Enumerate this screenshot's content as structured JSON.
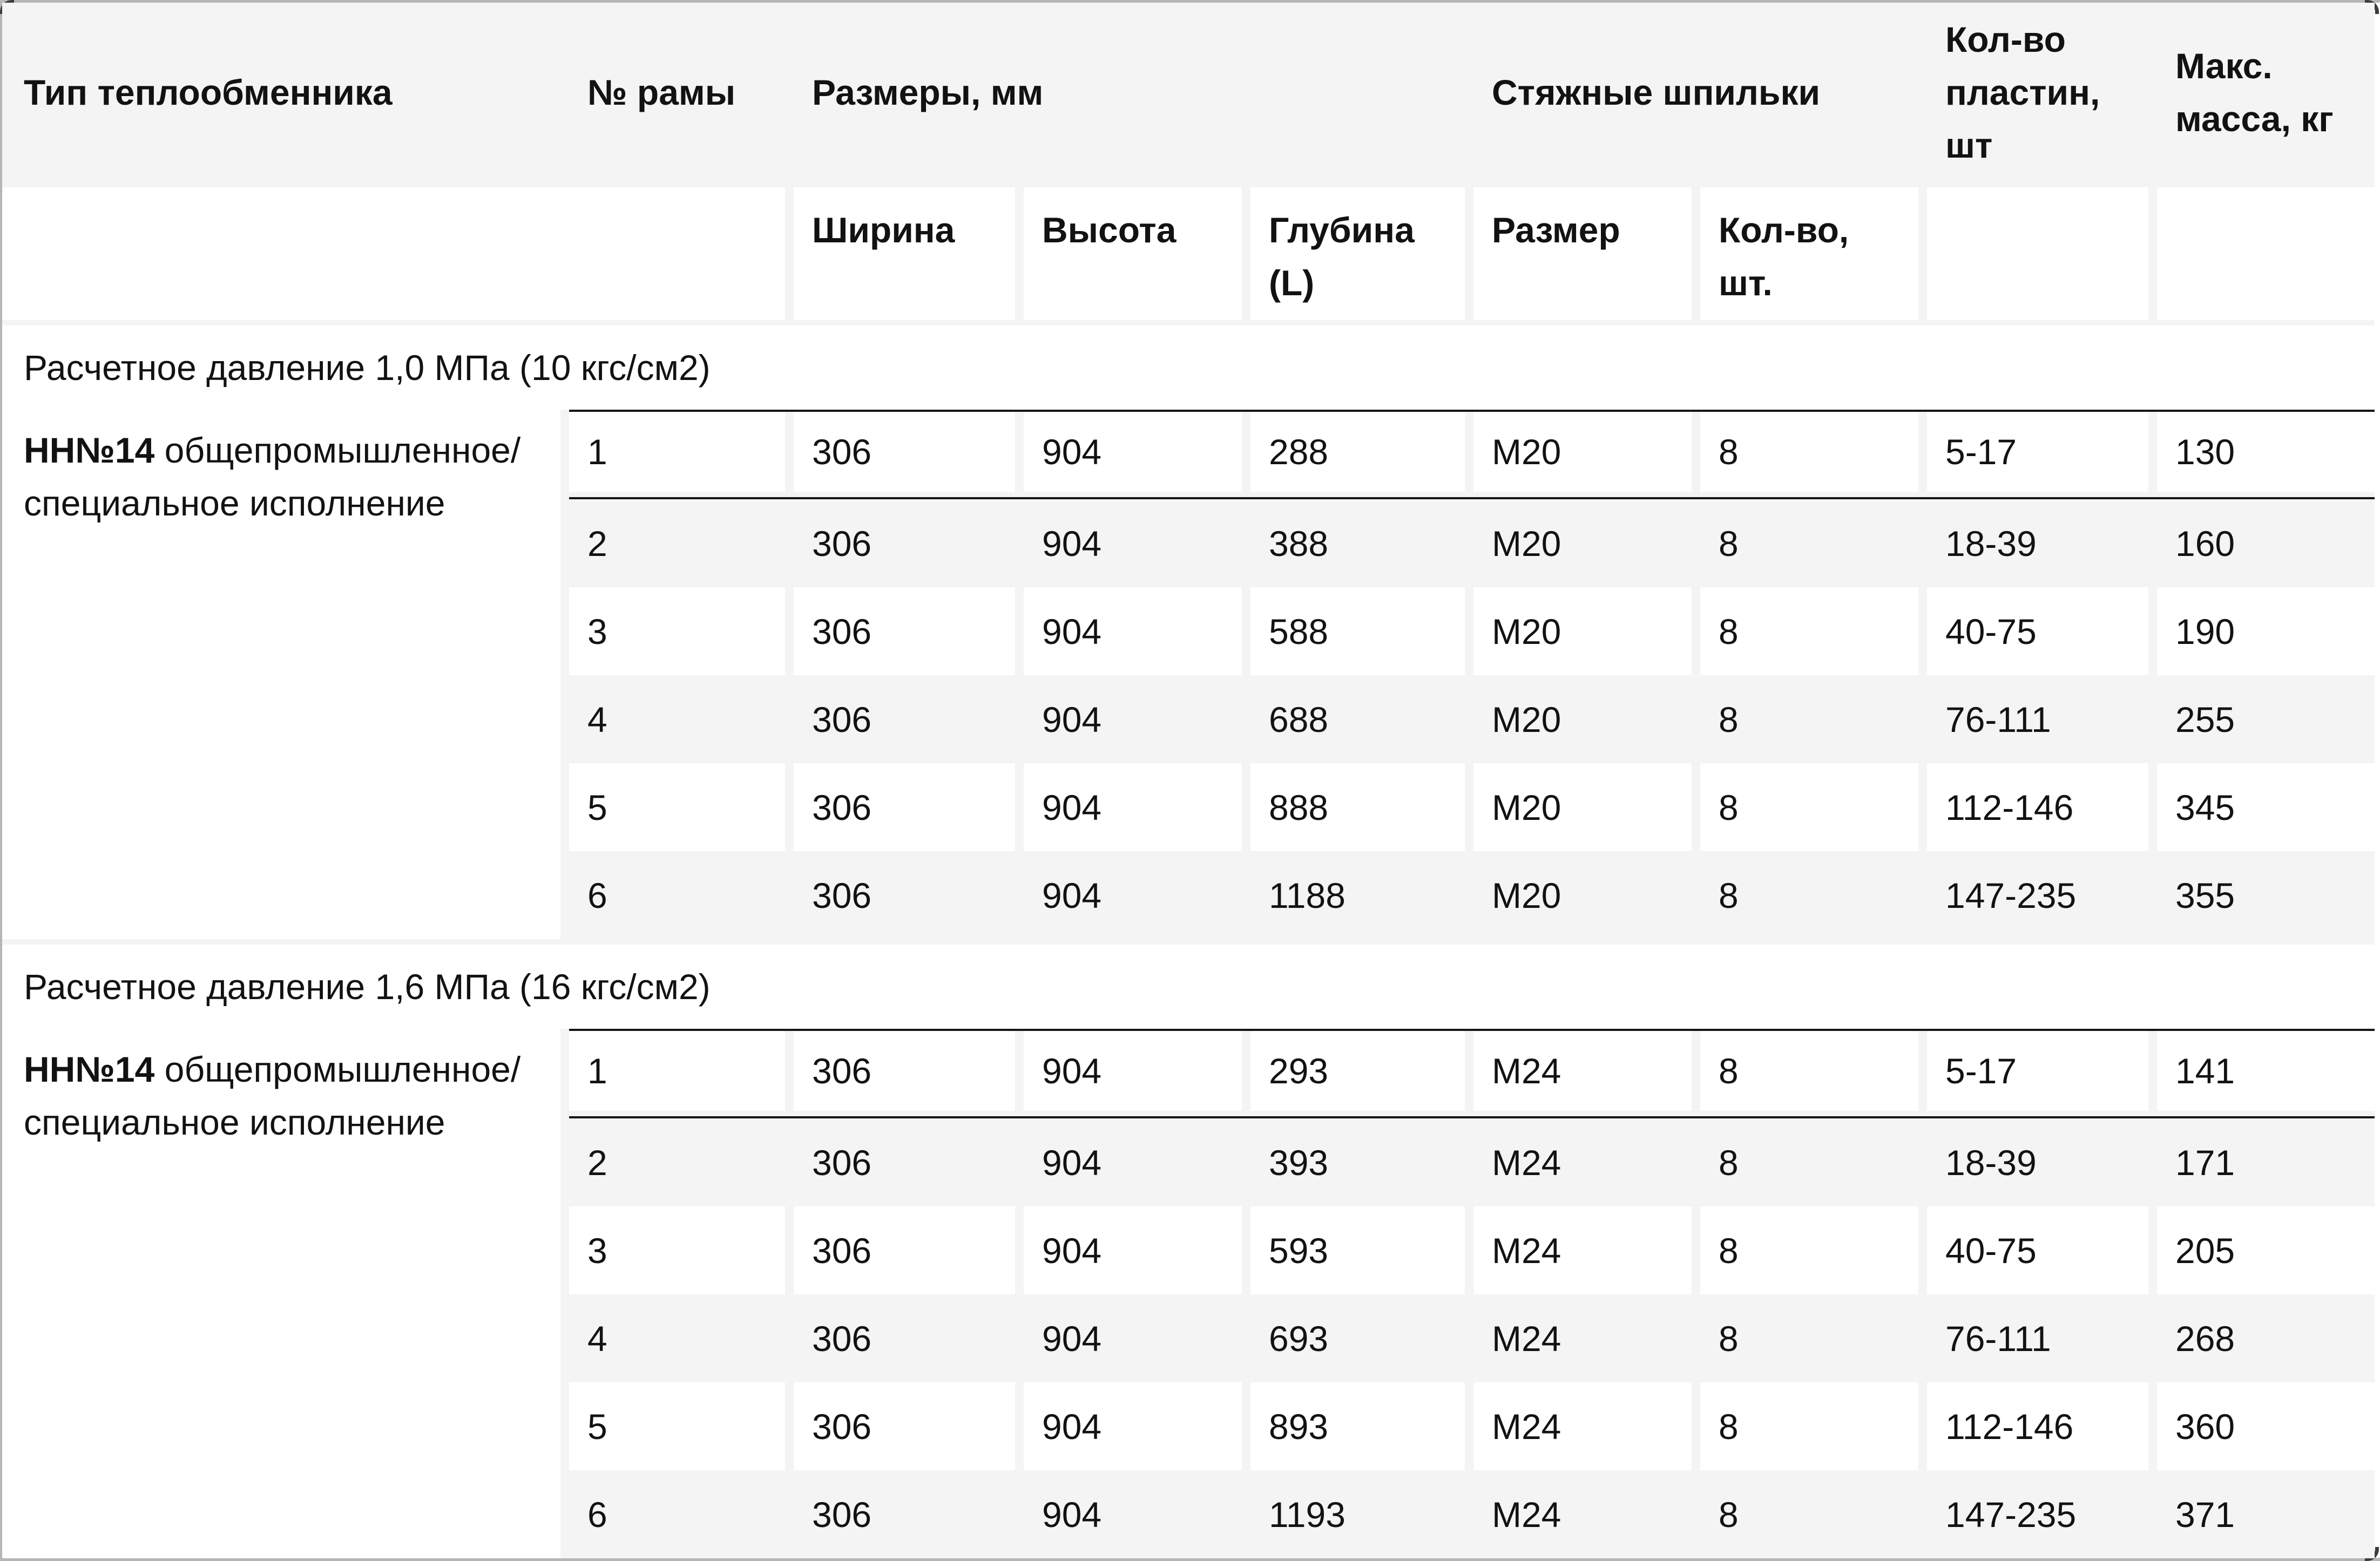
{
  "table": {
    "header": {
      "col_type": "Тип теплообменника",
      "col_frame": "№ рамы",
      "group_dimensions": "Размеры, мм",
      "group_studs": "Стяжные шпильки",
      "col_plates": "Кол-во\nпластин,\nшт",
      "col_mass": "Макс.\nмасса, кг",
      "sub_width": "Ширина",
      "sub_height": "Высота",
      "sub_depth": "Глубина\n(L)",
      "sub_size": "Размер",
      "sub_qty": "Кол-во,\nшт."
    },
    "sections": [
      {
        "title": "Расчетное давление 1,0 МПа (10 кгс/см2)",
        "label_bold": "НН№14 ",
        "label_rest": "общепромышленное/\nспециальное исполнение",
        "rows": [
          [
            "1",
            "306",
            "904",
            "288",
            "M20",
            "8",
            "5-17",
            "130"
          ],
          [
            "2",
            "306",
            "904",
            "388",
            "M20",
            "8",
            "18-39",
            "160"
          ],
          [
            "3",
            "306",
            "904",
            "588",
            "M20",
            "8",
            "40-75",
            "190"
          ],
          [
            "4",
            "306",
            "904",
            "688",
            "M20",
            "8",
            "76-111",
            "255"
          ],
          [
            "5",
            "306",
            "904",
            "888",
            "M20",
            "8",
            "112-146",
            "345"
          ],
          [
            "6",
            "306",
            "904",
            "1188",
            "M20",
            "8",
            "147-235",
            "355"
          ]
        ]
      },
      {
        "title": "Расчетное давление 1,6 МПа (16 кгс/см2)",
        "label_bold": "НН№14 ",
        "label_rest": "общепромышленное/\nспециальное исполнение",
        "rows": [
          [
            "1",
            "306",
            "904",
            "293",
            "M24",
            "8",
            "5-17",
            "141"
          ],
          [
            "2",
            "306",
            "904",
            "393",
            "M24",
            "8",
            "18-39",
            "171"
          ],
          [
            "3",
            "306",
            "904",
            "593",
            "M24",
            "8",
            "40-75",
            "205"
          ],
          [
            "4",
            "306",
            "904",
            "693",
            "M24",
            "8",
            "76-111",
            "268"
          ],
          [
            "5",
            "306",
            "904",
            "893",
            "M24",
            "8",
            "112-146",
            "360"
          ],
          [
            "6",
            "306",
            "904",
            "1193",
            "M24",
            "8",
            "147-235",
            "371"
          ]
        ]
      }
    ],
    "colors": {
      "header_bg": "#f4f4f5",
      "stripe_bg": "#f4f4f5",
      "cell_bg": "#ffffff",
      "divider": "#151517",
      "edge": "#b6b6b8",
      "text": "#121214"
    }
  }
}
